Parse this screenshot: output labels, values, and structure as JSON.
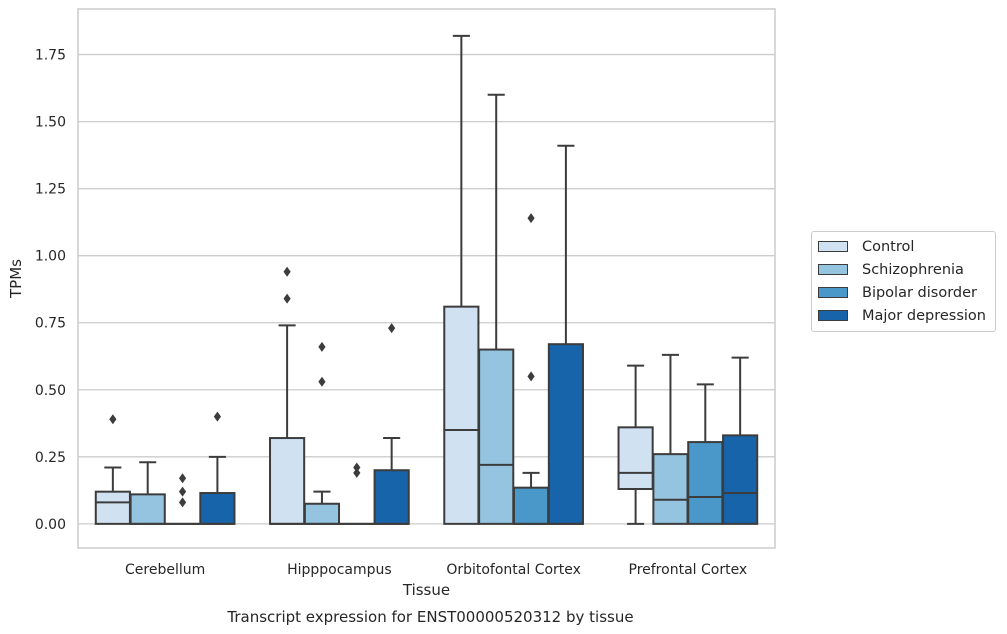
{
  "chart_data": {
    "type": "box",
    "caption": "Transcript expression for ENST00000520312 by tissue",
    "xlabel": "Tissue",
    "ylabel": "TPMs",
    "ylim": [
      -0.09,
      1.92
    ],
    "yticks": [
      0.0,
      0.25,
      0.5,
      0.75,
      1.0,
      1.25,
      1.5,
      1.75
    ],
    "ytick_labels": [
      "0.00",
      "0.25",
      "0.50",
      "0.75",
      "1.00",
      "1.25",
      "1.50",
      "1.75"
    ],
    "grid": true,
    "legend_position": "right",
    "categories": [
      "Cerebellum",
      "Hipppocampus",
      "Orbitofontal Cortex",
      "Prefrontal Cortex"
    ],
    "series": [
      {
        "name": "Control",
        "color": "#d0e1f2",
        "boxes": [
          {
            "q1": 0.0,
            "median": 0.08,
            "q3": 0.12,
            "whisker_low": 0.0,
            "whisker_high": 0.21,
            "outliers": [
              0.39
            ]
          },
          {
            "q1": 0.0,
            "median": 0.0,
            "q3": 0.32,
            "whisker_low": 0.0,
            "whisker_high": 0.74,
            "outliers": [
              0.84,
              0.94
            ]
          },
          {
            "q1": 0.0,
            "median": 0.35,
            "q3": 0.81,
            "whisker_low": 0.0,
            "whisker_high": 1.82,
            "outliers": []
          },
          {
            "q1": 0.13,
            "median": 0.19,
            "q3": 0.36,
            "whisker_low": 0.0,
            "whisker_high": 0.59,
            "outliers": []
          }
        ]
      },
      {
        "name": "Schizophrenia",
        "color": "#94c4df",
        "boxes": [
          {
            "q1": 0.0,
            "median": 0.0,
            "q3": 0.11,
            "whisker_low": 0.0,
            "whisker_high": 0.23,
            "outliers": []
          },
          {
            "q1": 0.0,
            "median": 0.0,
            "q3": 0.075,
            "whisker_low": 0.0,
            "whisker_high": 0.12,
            "outliers": [
              0.53,
              0.66
            ]
          },
          {
            "q1": 0.0,
            "median": 0.22,
            "q3": 0.65,
            "whisker_low": 0.0,
            "whisker_high": 1.6,
            "outliers": []
          },
          {
            "q1": 0.0,
            "median": 0.09,
            "q3": 0.26,
            "whisker_low": 0.0,
            "whisker_high": 0.63,
            "outliers": []
          }
        ]
      },
      {
        "name": "Bipolar disorder",
        "color": "#4a98c9",
        "boxes": [
          {
            "q1": 0.0,
            "median": 0.0,
            "q3": 0.0,
            "whisker_low": 0.0,
            "whisker_high": 0.0,
            "outliers": [
              0.08,
              0.12,
              0.17
            ]
          },
          {
            "q1": 0.0,
            "median": 0.0,
            "q3": 0.0,
            "whisker_low": 0.0,
            "whisker_high": 0.0,
            "outliers": [
              0.19,
              0.21
            ]
          },
          {
            "q1": 0.0,
            "median": 0.0,
            "q3": 0.135,
            "whisker_low": 0.0,
            "whisker_high": 0.19,
            "outliers": [
              0.55,
              1.14
            ]
          },
          {
            "q1": 0.0,
            "median": 0.1,
            "q3": 0.305,
            "whisker_low": 0.0,
            "whisker_high": 0.52,
            "outliers": []
          }
        ]
      },
      {
        "name": "Major depression",
        "color": "#1764ab",
        "boxes": [
          {
            "q1": 0.0,
            "median": 0.0,
            "q3": 0.115,
            "whisker_low": 0.0,
            "whisker_high": 0.25,
            "outliers": [
              0.4
            ]
          },
          {
            "q1": 0.0,
            "median": 0.0,
            "q3": 0.2,
            "whisker_low": 0.0,
            "whisker_high": 0.32,
            "outliers": [
              0.73
            ]
          },
          {
            "q1": 0.0,
            "median": 0.0,
            "q3": 0.67,
            "whisker_low": 0.0,
            "whisker_high": 1.41,
            "outliers": []
          },
          {
            "q1": 0.0,
            "median": 0.115,
            "q3": 0.33,
            "whisker_low": 0.0,
            "whisker_high": 0.62,
            "outliers": []
          }
        ]
      }
    ]
  }
}
